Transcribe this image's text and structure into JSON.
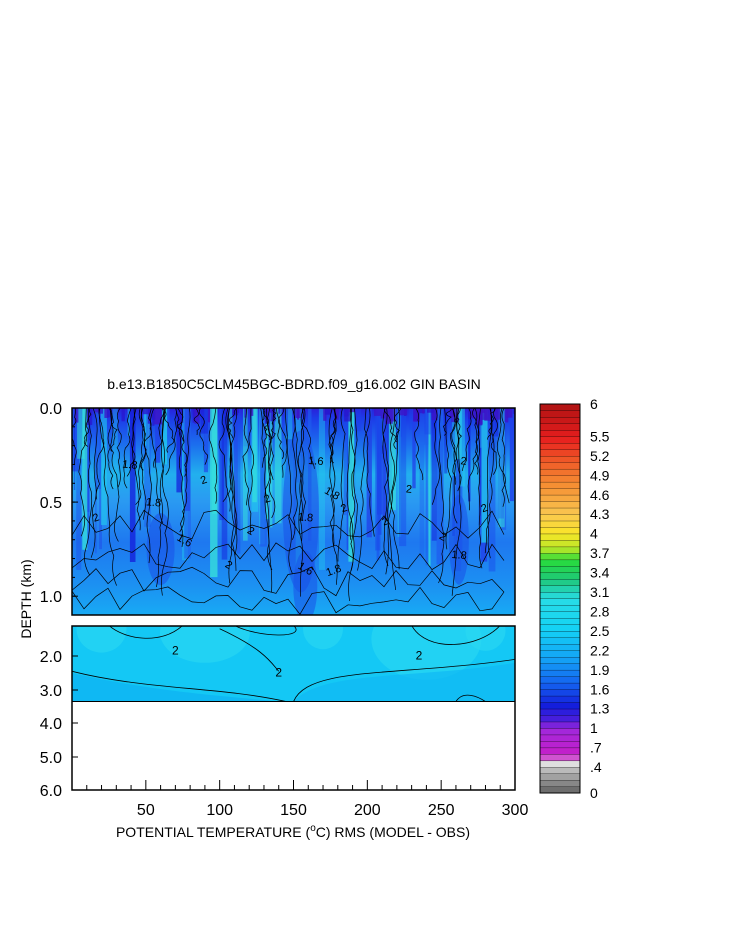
{
  "chart_data": {
    "type": "heatmap",
    "title": "b.e13.B1850C5CLM45BGC-BDRD.f09_g16.002 GIN BASIN",
    "xlabel_parts": {
      "pre": "POTENTIAL TEMPERATURE (",
      "sup": "o",
      "post": "C) RMS (MODEL - OBS)"
    },
    "ylabel": "DEPTH (km)",
    "x_range": [
      0,
      300
    ],
    "x_ticks": [
      "50",
      "100",
      "150",
      "200",
      "250",
      "300"
    ],
    "y_ticks_upper": [
      "0.0",
      "0.5",
      "1.0"
    ],
    "y_ticks_lower": [
      "2.0",
      "3.0",
      "4.0",
      "5.0",
      "6.0"
    ],
    "upper_depth_range_km": [
      0.0,
      1.1
    ],
    "lower_depth_range_km": [
      1.1,
      6.0
    ],
    "data_bottom_km": 3.35,
    "colorbar_labels": [
      "6",
      "5.5",
      "5.2",
      "4.9",
      "4.6",
      "4.3",
      "4",
      "3.7",
      "3.4",
      "3.1",
      "2.8",
      "2.5",
      "2.2",
      "1.9",
      "1.6",
      "1.3",
      "1",
      ".7",
      ".4",
      "0"
    ],
    "contour_labels": [
      "2",
      "1.8",
      "1.6",
      "2",
      "1.8",
      "2",
      "2",
      "1.8",
      "1.6",
      "1.8",
      "1.6",
      "1.8",
      "2",
      "2",
      "2",
      "2",
      "2",
      "2",
      "2",
      "1.8"
    ],
    "colors": {
      "deep_blue": "#1432e6",
      "mid_blue": "#1e78f0",
      "light_blue": "#19b4f5",
      "cyan": "#14d2f5",
      "aqua": "#32e6dc"
    }
  }
}
